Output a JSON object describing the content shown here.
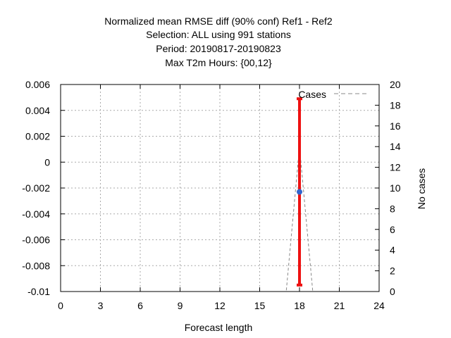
{
  "chart_data": {
    "type": "line",
    "title_lines": [
      "Normalized mean RMSE diff (90% conf) Ref1 - Ref2",
      "Selection: ALL using   991 stations",
      "Period: 20190817-20190823",
      "Max T2m   Hours: {00,12}"
    ],
    "xlabel": "Forecast length",
    "ylabel_left": "",
    "ylabel_right": "No cases",
    "xlim": [
      0,
      24
    ],
    "ylim_left": [
      -0.01,
      0.006
    ],
    "ylim_right": [
      0,
      20
    ],
    "x_ticks": [
      "0",
      "3",
      "6",
      "9",
      "12",
      "15",
      "18",
      "21",
      "24"
    ],
    "y_left_ticks": [
      "0.006",
      "0.004",
      "0.002",
      "0",
      "-0.002",
      "-0.004",
      "-0.006",
      "-0.008",
      "-0.01"
    ],
    "y_right_ticks": [
      "20",
      "18",
      "16",
      "14",
      "12",
      "10",
      "8",
      "6",
      "4",
      "2",
      "0"
    ],
    "grid": true,
    "legend_position": "top-right",
    "series": [
      {
        "name": "Cases",
        "axis": "right",
        "style": "dashed",
        "color": "#888888",
        "x": [
          0,
          1,
          2,
          3,
          4,
          5,
          6,
          7,
          8,
          9,
          10,
          11,
          12,
          13,
          14,
          15,
          16,
          17,
          18,
          19,
          20,
          21,
          22,
          23,
          24
        ],
        "values": [
          0,
          0,
          0,
          0,
          0,
          0,
          0,
          0,
          0,
          0,
          0,
          0,
          0,
          0,
          0,
          0,
          0,
          0,
          14,
          0,
          0,
          0,
          0,
          0,
          0
        ]
      }
    ],
    "score": {
      "axis": "left",
      "x": 18,
      "value": -0.0023,
      "conf_low": -0.0095,
      "conf_high": 0.0049,
      "error_bar_color": "#ee1111",
      "marker_color": "#3366cc"
    }
  }
}
